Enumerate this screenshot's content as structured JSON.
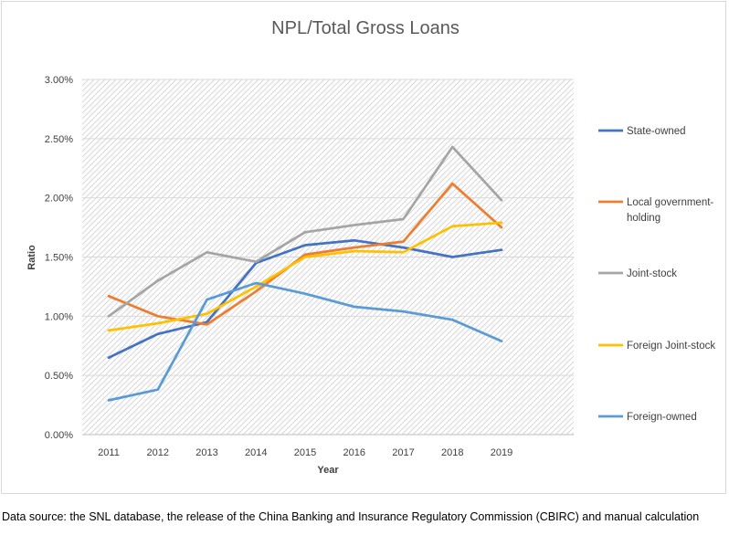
{
  "chart_data": {
    "type": "line",
    "title": "NPL/Total Gross Loans",
    "xlabel": "Year",
    "ylabel": "Ratio",
    "categories": [
      "2011",
      "2012",
      "2013",
      "2014",
      "2015",
      "2016",
      "2017",
      "2018",
      "2019"
    ],
    "ylim": [
      0,
      0.03
    ],
    "yticks": [
      0,
      0.005,
      0.01,
      0.015,
      0.02,
      0.025,
      0.03
    ],
    "ytick_labels": [
      "0.00%",
      "0.50%",
      "1.00%",
      "1.50%",
      "2.00%",
      "2.50%",
      "3.00%"
    ],
    "grid": true,
    "legend_position": "right",
    "series": [
      {
        "name": "State-owned",
        "legend_lines": [
          "State-owned"
        ],
        "color": "#4472c4",
        "values": [
          0.0065,
          0.0085,
          0.0095,
          0.0145,
          0.016,
          0.0164,
          0.0158,
          0.015,
          0.0156
        ]
      },
      {
        "name": "Local government-holding",
        "legend_lines": [
          "Local government-",
          "holding"
        ],
        "color": "#ed7d31",
        "values": [
          0.0117,
          0.01,
          0.0093,
          0.0121,
          0.0152,
          0.0158,
          0.0163,
          0.0212,
          0.0175
        ]
      },
      {
        "name": "Joint-stock",
        "legend_lines": [
          "Joint-stock"
        ],
        "color": "#a5a5a5",
        "values": [
          0.01,
          0.013,
          0.0154,
          0.0146,
          0.0171,
          0.0177,
          0.0182,
          0.0243,
          0.0198
        ]
      },
      {
        "name": "Foreign Joint-stock",
        "legend_lines": [
          "Foreign Joint-stock"
        ],
        "color": "#ffc000",
        "values": [
          0.0088,
          0.0094,
          0.0102,
          0.0125,
          0.015,
          0.0155,
          0.0154,
          0.0176,
          0.0179
        ]
      },
      {
        "name": "Foreign-owned",
        "legend_lines": [
          "Foreign-owned"
        ],
        "color": "#5b9bd5",
        "values": [
          0.0029,
          0.0038,
          0.0114,
          0.0128,
          0.0119,
          0.0108,
          0.0104,
          0.0097,
          0.0079
        ]
      }
    ]
  },
  "source_note": "Data source: the SNL database, the release of the China Banking and Insurance Regulatory Commission (CBIRC) and manual calculation"
}
